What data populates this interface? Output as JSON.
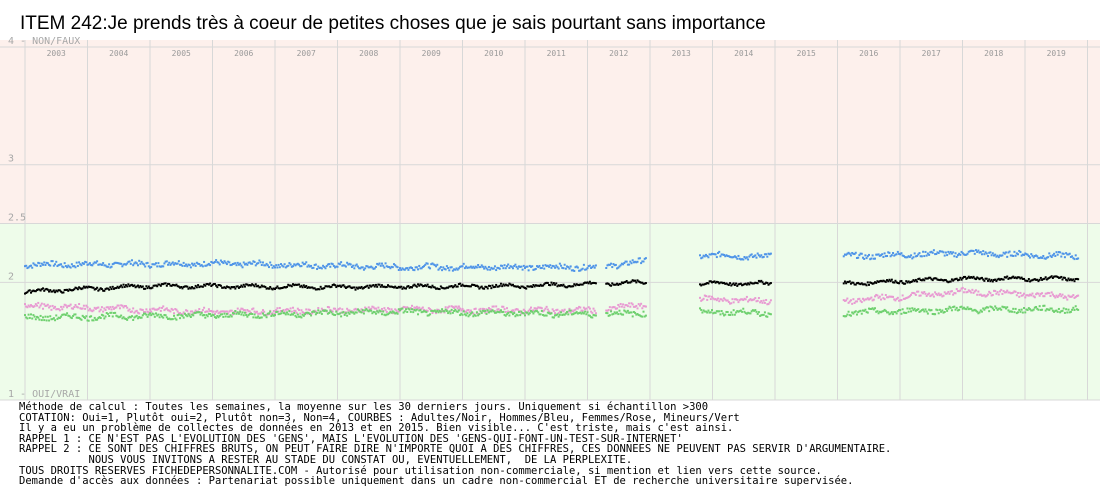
{
  "chart_data": {
    "type": "scatter",
    "title": "ITEM 242:Je prends très à coeur de petites choses que je sais pourtant sans importance",
    "xlabel": "",
    "ylabel": "",
    "x_categories": [
      "2003",
      "2004",
      "2005",
      "2006",
      "2007",
      "2008",
      "2009",
      "2010",
      "2011",
      "2012",
      "2013",
      "2014",
      "2015",
      "2016",
      "2017",
      "2018",
      "2019"
    ],
    "ylim": [
      1,
      4.06
    ],
    "y_ticks": [
      {
        "value": 4,
        "label": "4 - NON/FAUX"
      },
      {
        "value": 3,
        "label": "3"
      },
      {
        "value": 2.5,
        "label": "2.5"
      },
      {
        "value": 2,
        "label": "2"
      },
      {
        "value": 1,
        "label": "1 - OUI/VRAI"
      }
    ],
    "bands": [
      {
        "from": 2.5,
        "to": 4.06,
        "color": "#fdf0ec"
      },
      {
        "from": 1,
        "to": 2.5,
        "color": "#eefcea"
      }
    ],
    "grid": true,
    "legend": "none",
    "x_extent": [
      2002.6,
      2020.2
    ],
    "segments": [
      {
        "from": 2003.0,
        "to": 2012.15
      },
      {
        "from": 2012.3,
        "to": 2012.95
      },
      {
        "from": 2013.8,
        "to": 2014.95
      },
      {
        "from": 2016.1,
        "to": 2019.85
      }
    ],
    "series": [
      {
        "name": "Hommes",
        "color": "#4f94e8",
        "anchors": [
          [
            2003.0,
            2.15
          ],
          [
            2006.0,
            2.16
          ],
          [
            2009.0,
            2.13
          ],
          [
            2012.1,
            2.13
          ],
          [
            2013.8,
            2.23
          ],
          [
            2014.9,
            2.22
          ],
          [
            2016.1,
            2.22
          ],
          [
            2018.0,
            2.25
          ],
          [
            2019.85,
            2.22
          ]
        ]
      },
      {
        "name": "Adultes",
        "color": "#000000",
        "anchors": [
          [
            2003.0,
            1.92
          ],
          [
            2005.0,
            1.97
          ],
          [
            2008.0,
            1.96
          ],
          [
            2011.0,
            1.97
          ],
          [
            2012.95,
            2.0
          ],
          [
            2013.8,
            1.99
          ],
          [
            2014.9,
            1.99
          ],
          [
            2016.1,
            1.99
          ],
          [
            2018.0,
            2.03
          ],
          [
            2019.85,
            2.03
          ]
        ]
      },
      {
        "name": "Femmes",
        "color": "#e89ad2",
        "anchors": [
          [
            2003.0,
            1.8
          ],
          [
            2006.0,
            1.75
          ],
          [
            2009.0,
            1.77
          ],
          [
            2012.1,
            1.76
          ],
          [
            2013.8,
            1.86
          ],
          [
            2014.9,
            1.84
          ],
          [
            2016.1,
            1.84
          ],
          [
            2018.0,
            1.92
          ],
          [
            2019.85,
            1.88
          ]
        ]
      },
      {
        "name": "Mineurs",
        "color": "#6fd06f",
        "anchors": [
          [
            2003.0,
            1.7
          ],
          [
            2006.0,
            1.72
          ],
          [
            2009.0,
            1.75
          ],
          [
            2012.1,
            1.73
          ],
          [
            2013.8,
            1.75
          ],
          [
            2014.9,
            1.74
          ],
          [
            2016.1,
            1.74
          ],
          [
            2018.0,
            1.77
          ],
          [
            2019.85,
            1.77
          ]
        ]
      }
    ],
    "notes": [
      "Méthode de calcul : Toutes les semaines, la moyenne sur les 30 derniers jours. Uniquement si échantillon >300",
      "COTATION: Oui=1, Plutôt oui=2, Plutôt non=3, Non=4, COURBES : Adultes/Noir, Hommes/Bleu, Femmes/Rose, Mineurs/Vert",
      "Il y a eu un problème de collectes de données en 2013 et en 2015. Bien visible... C'est triste, mais c'est ainsi.",
      "RAPPEL 1 : CE N'EST PAS L'EVOLUTION DES 'GENS', MAIS L'EVOLUTION DES 'GENS-QUI-FONT-UN-TEST-SUR-INTERNET'",
      "RAPPEL 2 : CE SONT DES CHIFFRES BRUTS, ON PEUT FAIRE DIRE N'IMPORTE QUOI A DES CHIFFRES, CES DONNEES NE PEUVENT PAS SERVIR D'ARGUMENTAIRE.",
      "           NOUS VOUS INVITONS A RESTER AU STADE DU CONSTAT OU, EVENTUELLEMENT,  DE LA PERPLEXITE.",
      "TOUS DROITS RESERVES FICHEDEPERSONNALITE.COM - Autorisé pour utilisation non-commerciale, si mention et lien vers cette source.",
      "Demande d'accès aux données : Partenariat possible uniquement dans un cadre non-commercial ET de recherche universitaire supervisée."
    ]
  }
}
